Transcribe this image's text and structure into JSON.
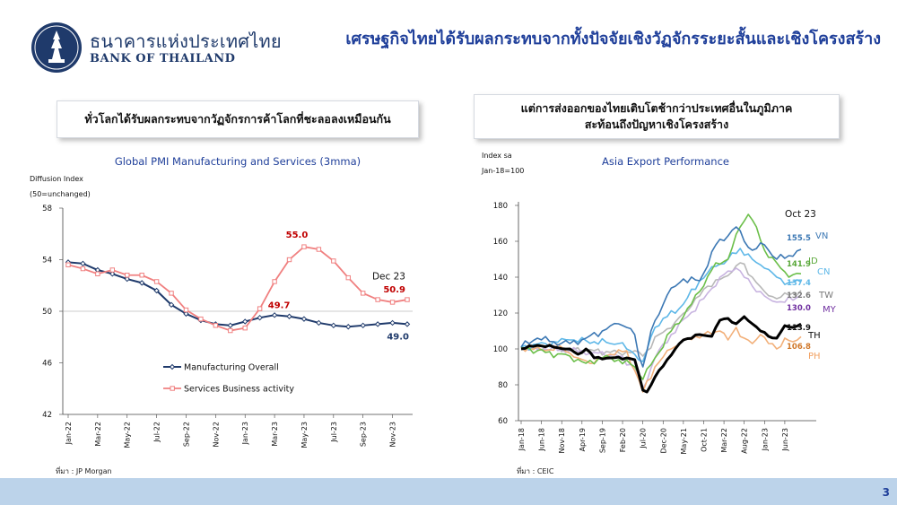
{
  "header": {
    "org_thai": "ธนาคารแห่งประเทศไทย",
    "org_en": "BANK OF THAILAND",
    "title": "เศรษฐกิจไทยได้รับผลกระทบจากทั้งปัจจัยเชิงวัฏจักรระยะสั้นและเชิงโครงสร้าง"
  },
  "left_panel": {
    "box_text": "ทั่วโลกได้รับผลกระทบจากวัฏจักรการค้าโลกที่ชะลอลงเหมือนกัน",
    "source": "ที่มา : JP Morgan"
  },
  "right_panel": {
    "box_line1": "แต่การส่งออกของไทยเติบโตช้ากว่าประเทศอื่นในภูมิภาค",
    "box_line2": "สะท้อนถึงปัญหาเชิงโครงสร้าง",
    "source": "ที่มา : CEIC"
  },
  "page_number": "3",
  "colors": {
    "title_blue": "#1f3f9a",
    "navy": "#1f3a6b",
    "footer": "#bcd3ea"
  },
  "chart_data": [
    {
      "type": "line",
      "title": "Global PMI Manufacturing and Services (3mma)",
      "ylabel_line1": "Diffusion Index",
      "ylabel_line2": "(50=unchanged)",
      "ylim": [
        42,
        58
      ],
      "yticks": [
        42,
        46,
        50,
        54,
        58
      ],
      "reference_line": 50,
      "x": [
        "Jan-22",
        "Feb-22",
        "Mar-22",
        "Apr-22",
        "May-22",
        "Jun-22",
        "Jul-22",
        "Aug-22",
        "Sep-22",
        "Oct-22",
        "Nov-22",
        "Dec-22",
        "Jan-23",
        "Feb-23",
        "Mar-23",
        "Apr-23",
        "May-23",
        "Jun-23",
        "Jul-23",
        "Aug-23",
        "Sep-23",
        "Oct-23",
        "Nov-23",
        "Dec-23"
      ],
      "xtick_labels": [
        "Jan-22",
        "Mar-22",
        "May-22",
        "Jul-22",
        "Sep-22",
        "Nov-22",
        "Jan-23",
        "Mar-23",
        "May-23",
        "Jul-23",
        "Sep-23",
        "Nov-23"
      ],
      "series": [
        {
          "name": "Manufacturing Overall",
          "color": "#1f3a6b",
          "marker": "diamond",
          "values": [
            53.8,
            53.7,
            53.2,
            52.9,
            52.5,
            52.2,
            51.6,
            50.5,
            49.8,
            49.3,
            49.0,
            48.9,
            49.2,
            49.5,
            49.7,
            49.6,
            49.4,
            49.1,
            48.9,
            48.8,
            48.9,
            49.0,
            49.1,
            49.0
          ]
        },
        {
          "name": "Services Business activity",
          "color": "#f08080",
          "marker": "square",
          "values": [
            53.6,
            53.3,
            52.9,
            53.2,
            52.8,
            52.8,
            52.3,
            51.4,
            50.1,
            49.4,
            48.9,
            48.5,
            48.7,
            50.2,
            52.3,
            54.0,
            55.0,
            54.8,
            53.9,
            52.6,
            51.4,
            50.9,
            50.7,
            50.9
          ]
        }
      ],
      "annotations": [
        {
          "text": "55.0",
          "x": "May-23",
          "series": "Services Business activity"
        },
        {
          "text": "49.7",
          "x": "Mar-23",
          "series": "Manufacturing Overall"
        },
        {
          "text": "Dec 23",
          "x": "Dec-23"
        },
        {
          "text": "50.9",
          "x": "Dec-23",
          "series": "Services Business activity"
        },
        {
          "text": "49.0",
          "x": "Dec-23",
          "series": "Manufacturing Overall"
        }
      ],
      "legend": "bottom-left"
    },
    {
      "type": "line",
      "title": "Asia Export Performance",
      "ylabel_line1": "Index sa",
      "ylabel_line2": "Jan-18=100",
      "ylim": [
        60,
        180
      ],
      "yticks": [
        60,
        80,
        100,
        120,
        140,
        160,
        180
      ],
      "xtick_labels": [
        "Jan-18",
        "Jun-18",
        "Nov-18",
        "Apr-19",
        "Sep-19",
        "Feb-20",
        "Jul-20",
        "Dec-20",
        "May-21",
        "Oct-21",
        "Mar-22",
        "Aug-22",
        "Jan-23",
        "Jun-23"
      ],
      "period": "Jan-18 to Oct-23 (monthly)",
      "end_label": "Oct 23",
      "series": [
        {
          "name": "VN",
          "color": "#3c78b4",
          "last": 155.5,
          "anchors": [
            [
              0,
              101
            ],
            [
              4,
              106
            ],
            [
              8,
              104
            ],
            [
              12,
              103
            ],
            [
              16,
              106
            ],
            [
              20,
              110
            ],
            [
              24,
              114
            ],
            [
              26,
              112
            ],
            [
              28,
              108
            ],
            [
              29,
              96
            ],
            [
              30,
              90
            ],
            [
              32,
              110
            ],
            [
              36,
              130
            ],
            [
              40,
              139
            ],
            [
              44,
              138
            ],
            [
              48,
              158
            ],
            [
              51,
              163
            ],
            [
              53,
              168
            ],
            [
              55,
              160
            ],
            [
              57,
              155
            ],
            [
              60,
              158
            ],
            [
              63,
              150
            ],
            [
              66,
              152
            ],
            [
              69,
              155.5
            ]
          ]
        },
        {
          "name": "ID",
          "color": "#6cbf4a",
          "last": 141.9,
          "anchors": [
            [
              0,
              101
            ],
            [
              6,
              98
            ],
            [
              12,
              96
            ],
            [
              16,
              92
            ],
            [
              20,
              95
            ],
            [
              24,
              94
            ],
            [
              28,
              90
            ],
            [
              30,
              83
            ],
            [
              33,
              95
            ],
            [
              37,
              110
            ],
            [
              40,
              118
            ],
            [
              44,
              132
            ],
            [
              48,
              148
            ],
            [
              51,
              150
            ],
            [
              54,
              168
            ],
            [
              56,
              175
            ],
            [
              58,
              168
            ],
            [
              60,
              155
            ],
            [
              63,
              148
            ],
            [
              66,
              140
            ],
            [
              69,
              141.9
            ]
          ]
        },
        {
          "name": "CN",
          "color": "#5fb8e8",
          "last": 137.4,
          "anchors": [
            [
              0,
              101
            ],
            [
              6,
              103
            ],
            [
              12,
              105
            ],
            [
              18,
              104
            ],
            [
              24,
              103
            ],
            [
              28,
              97
            ],
            [
              30,
              93
            ],
            [
              33,
              112
            ],
            [
              36,
              118
            ],
            [
              40,
              125
            ],
            [
              44,
              138
            ],
            [
              48,
              146
            ],
            [
              51,
              150
            ],
            [
              54,
              156
            ],
            [
              57,
              150
            ],
            [
              60,
              145
            ],
            [
              63,
              140
            ],
            [
              66,
              137
            ],
            [
              69,
              137.4
            ]
          ]
        },
        {
          "name": "TW",
          "color": "#b8b8b8",
          "last": 132.6,
          "anchors": [
            [
              0,
              100
            ],
            [
              6,
              101
            ],
            [
              12,
              100
            ],
            [
              18,
              99
            ],
            [
              24,
              98
            ],
            [
              28,
              99
            ],
            [
              30,
              96
            ],
            [
              34,
              108
            ],
            [
              38,
              115
            ],
            [
              42,
              124
            ],
            [
              46,
              135
            ],
            [
              50,
              140
            ],
            [
              54,
              148
            ],
            [
              57,
              140
            ],
            [
              60,
              132
            ],
            [
              63,
              128
            ],
            [
              66,
              130
            ],
            [
              69,
              132.6
            ]
          ]
        },
        {
          "name": "MY",
          "color": "#c8b4e0",
          "last": 130.0,
          "anchors": [
            [
              0,
              100
            ],
            [
              6,
              100
            ],
            [
              12,
              99
            ],
            [
              18,
              98
            ],
            [
              24,
              96
            ],
            [
              28,
              90
            ],
            [
              30,
              78
            ],
            [
              33,
              95
            ],
            [
              37,
              108
            ],
            [
              41,
              118
            ],
            [
              45,
              128
            ],
            [
              49,
              140
            ],
            [
              53,
              145
            ],
            [
              57,
              135
            ],
            [
              61,
              128
            ],
            [
              65,
              126
            ],
            [
              69,
              130
            ]
          ]
        },
        {
          "name": "TH",
          "color": "#000000",
          "last": 113.9,
          "anchors": [
            [
              0,
              100
            ],
            [
              4,
              102
            ],
            [
              8,
              101
            ],
            [
              12,
              100
            ],
            [
              14,
              97
            ],
            [
              16,
              100
            ],
            [
              18,
              95
            ],
            [
              22,
              95
            ],
            [
              26,
              95
            ],
            [
              28,
              94
            ],
            [
              29,
              86
            ],
            [
              30,
              77
            ],
            [
              31,
              76
            ],
            [
              34,
              88
            ],
            [
              38,
              100
            ],
            [
              40,
              105
            ],
            [
              44,
              108
            ],
            [
              47,
              107
            ],
            [
              49,
              116
            ],
            [
              51,
              117
            ],
            [
              53,
              114
            ],
            [
              55,
              118
            ],
            [
              57,
              114
            ],
            [
              59,
              110
            ],
            [
              61,
              107
            ],
            [
              63,
              106
            ],
            [
              65,
              113
            ],
            [
              67,
              112
            ],
            [
              69,
              113.9
            ]
          ]
        },
        {
          "name": "PH",
          "color": "#f2b07a",
          "last": 106.8,
          "anchors": [
            [
              0,
              101
            ],
            [
              6,
              99
            ],
            [
              10,
              101
            ],
            [
              14,
              95
            ],
            [
              18,
              92
            ],
            [
              22,
              97
            ],
            [
              26,
              99
            ],
            [
              28,
              88
            ],
            [
              30,
              76
            ],
            [
              33,
              90
            ],
            [
              37,
              100
            ],
            [
              41,
              106
            ],
            [
              45,
              108
            ],
            [
              49,
              110
            ],
            [
              51,
              105
            ],
            [
              53,
              112
            ],
            [
              55,
              106
            ],
            [
              57,
              103
            ],
            [
              59,
              108
            ],
            [
              61,
              103
            ],
            [
              63,
              100
            ],
            [
              65,
              106
            ],
            [
              67,
              104
            ],
            [
              69,
              106.8
            ]
          ]
        }
      ]
    }
  ]
}
